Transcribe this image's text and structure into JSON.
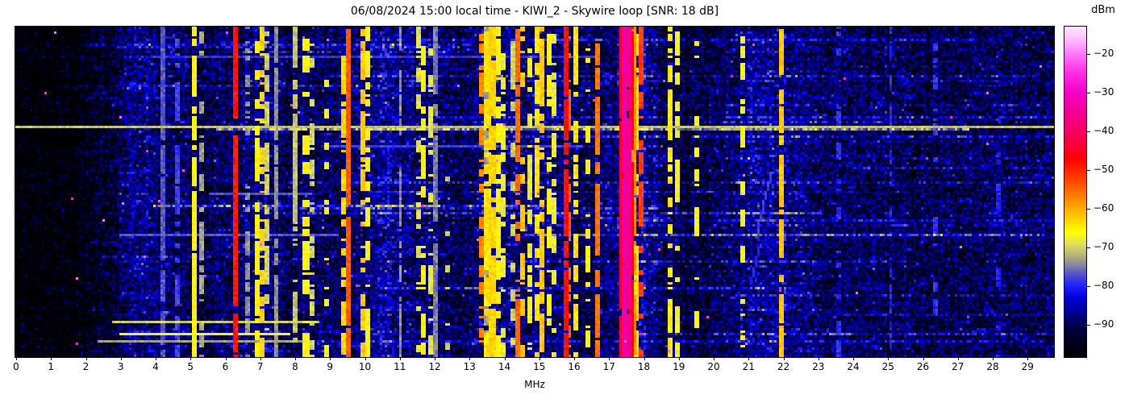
{
  "figure": {
    "title": "06/08/2024 15:00 local time - KIWI_2 - Skywire loop [SNR: 18 dB]",
    "xlabel": "MHz"
  },
  "colorbar": {
    "label": "dBm",
    "vmin": -98.3,
    "vmax": -12.9,
    "ticks": [
      {
        "v": -20,
        "label": "−20"
      },
      {
        "v": -30,
        "label": "−30"
      },
      {
        "v": -40,
        "label": "−40"
      },
      {
        "v": -50,
        "label": "−50"
      },
      {
        "v": -60,
        "label": "−60"
      },
      {
        "v": -70,
        "label": "−70"
      },
      {
        "v": -80,
        "label": "−80"
      },
      {
        "v": -90,
        "label": "−90"
      }
    ],
    "stops": [
      [
        -98.3,
        "#000000"
      ],
      [
        -94,
        "#00001e"
      ],
      [
        -90,
        "#00004b"
      ],
      [
        -87,
        "#000091"
      ],
      [
        -83,
        "#0000d7"
      ],
      [
        -80,
        "#1e1eff"
      ],
      [
        -77,
        "#5050cd"
      ],
      [
        -74.5,
        "#8787a0"
      ],
      [
        -72,
        "#b4b478"
      ],
      [
        -69,
        "#e1e15a"
      ],
      [
        -66,
        "#ffff00"
      ],
      [
        -62,
        "#ffc800"
      ],
      [
        -57,
        "#ff8200"
      ],
      [
        -52,
        "#ff3c00"
      ],
      [
        -47,
        "#ff0000"
      ],
      [
        -44,
        "#fa0032"
      ],
      [
        -40,
        "#f50064"
      ],
      [
        -35,
        "#f20096"
      ],
      [
        -30,
        "#f600c8"
      ],
      [
        -25,
        "#ff2ae1"
      ],
      [
        -20,
        "#ff78f8"
      ],
      [
        -16,
        "#ffc0ff"
      ],
      [
        -12.9,
        "#fce6ff"
      ]
    ]
  },
  "chart_data": {
    "type": "heatmap",
    "subtype": "hf-spectrum-waterfall",
    "title": "06/08/2024 15:00 local time - KIWI_2 - Skywire loop [SNR: 18 dB]",
    "xlabel": "MHz",
    "ylabel": "",
    "x_ticks": [
      0,
      1,
      2,
      3,
      4,
      5,
      6,
      7,
      8,
      9,
      10,
      11,
      12,
      13,
      14,
      15,
      16,
      17,
      18,
      19,
      20,
      21,
      22,
      23,
      24,
      25,
      26,
      27,
      28,
      29
    ],
    "x_range": [
      0,
      29.78
    ],
    "value_unit": "dBm",
    "value_range": [
      -98,
      -13
    ],
    "legend": "none",
    "grid": false,
    "noise_floor_points": [
      [
        0,
        -99
      ],
      [
        1.6,
        -98
      ],
      [
        2.2,
        -96
      ],
      [
        2.8,
        -92
      ],
      [
        3.3,
        -88
      ],
      [
        3.7,
        -86
      ],
      [
        4.1,
        -88
      ],
      [
        4.6,
        -90
      ],
      [
        5.4,
        -91
      ],
      [
        6.3,
        -89
      ],
      [
        7.1,
        -88
      ],
      [
        7.8,
        -90
      ],
      [
        8.6,
        -90
      ],
      [
        9.3,
        -89
      ],
      [
        10.0,
        -88
      ],
      [
        10.7,
        -86
      ],
      [
        11.3,
        -88
      ],
      [
        12.0,
        -88
      ],
      [
        12.7,
        -92
      ],
      [
        13.3,
        -88
      ],
      [
        13.8,
        -87
      ],
      [
        14.5,
        -89
      ],
      [
        15.1,
        -88
      ],
      [
        15.7,
        -89
      ],
      [
        16.3,
        -91
      ],
      [
        17.0,
        -90
      ],
      [
        17.5,
        -85
      ],
      [
        18.1,
        -86
      ],
      [
        18.6,
        -90
      ],
      [
        19.3,
        -92
      ],
      [
        20.2,
        -90
      ],
      [
        21.0,
        -87
      ],
      [
        21.6,
        -86
      ],
      [
        22.1,
        -87
      ],
      [
        22.6,
        -89
      ],
      [
        23.5,
        -90
      ],
      [
        25.0,
        -90
      ],
      [
        26.5,
        -91
      ],
      [
        28.0,
        -90
      ],
      [
        29.78,
        -90
      ]
    ],
    "signals_format": [
      "freq_mhz",
      "width_mhz",
      "level_dbm",
      "duty"
    ],
    "signals": [
      [
        4.25,
        0.07,
        -77,
        0.85
      ],
      [
        4.62,
        0.07,
        -78,
        0.7
      ],
      [
        5.14,
        0.09,
        -66,
        0.8
      ],
      [
        5.36,
        0.07,
        -73,
        0.6
      ],
      [
        6.28,
        0.07,
        -49,
        0.95
      ],
      [
        6.62,
        0.07,
        -74,
        0.5
      ],
      [
        6.92,
        0.12,
        -66,
        0.45
      ],
      [
        7.08,
        0.1,
        -63,
        0.55
      ],
      [
        7.22,
        0.07,
        -70,
        0.6
      ],
      [
        7.46,
        0.06,
        -74,
        0.8
      ],
      [
        8.0,
        0.07,
        -71,
        0.5
      ],
      [
        8.34,
        0.1,
        -66,
        0.55
      ],
      [
        8.52,
        0.07,
        -70,
        0.45
      ],
      [
        8.95,
        0.07,
        -67,
        0.4
      ],
      [
        9.4,
        0.07,
        -63,
        0.6
      ],
      [
        9.57,
        0.08,
        -54,
        0.92
      ],
      [
        9.95,
        0.07,
        -62,
        0.65
      ],
      [
        10.12,
        0.06,
        -67,
        0.5
      ],
      [
        11.05,
        0.06,
        -74,
        0.8
      ],
      [
        11.55,
        0.06,
        -69,
        0.4
      ],
      [
        11.72,
        0.08,
        -66,
        0.5
      ],
      [
        11.9,
        0.06,
        -68,
        0.45
      ],
      [
        12.05,
        0.06,
        -75,
        0.85
      ],
      [
        12.4,
        0.06,
        -70,
        0.3
      ],
      [
        13.38,
        0.1,
        -57,
        0.55
      ],
      [
        13.48,
        0.07,
        -73,
        0.8
      ],
      [
        13.55,
        0.1,
        -64,
        0.75
      ],
      [
        13.7,
        0.12,
        -63,
        0.85
      ],
      [
        13.87,
        0.09,
        -66,
        0.65
      ],
      [
        14.02,
        0.07,
        -68,
        0.55
      ],
      [
        14.27,
        0.06,
        -70,
        0.45
      ],
      [
        14.42,
        0.08,
        -55,
        0.75
      ],
      [
        14.55,
        0.06,
        -62,
        0.4
      ],
      [
        14.75,
        0.06,
        -68,
        0.4
      ],
      [
        14.97,
        0.08,
        -64,
        0.65
      ],
      [
        15.12,
        0.08,
        -62,
        0.55
      ],
      [
        15.28,
        0.07,
        -66,
        0.45
      ],
      [
        15.47,
        0.06,
        -68,
        0.45
      ],
      [
        15.82,
        0.06,
        -48,
        0.8
      ],
      [
        15.9,
        0.05,
        -55,
        0.5
      ],
      [
        16.06,
        0.07,
        -64,
        0.55
      ],
      [
        16.42,
        0.06,
        -66,
        0.35
      ],
      [
        16.67,
        0.06,
        -56,
        0.85
      ],
      [
        17.36,
        0.08,
        -44,
        0.95
      ],
      [
        17.47,
        0.09,
        -34,
        0.97
      ],
      [
        17.56,
        0.08,
        -36,
        0.95
      ],
      [
        17.63,
        0.07,
        -46,
        0.9
      ],
      [
        17.7,
        0.08,
        -58,
        0.85
      ],
      [
        17.78,
        0.06,
        -64,
        0.7
      ],
      [
        17.92,
        0.06,
        -52,
        0.5
      ],
      [
        18.75,
        0.07,
        -65,
        0.55
      ],
      [
        19.0,
        0.06,
        -67,
        0.45
      ],
      [
        19.52,
        0.06,
        -66,
        0.35
      ],
      [
        20.86,
        0.07,
        -67,
        0.5
      ],
      [
        21.96,
        0.08,
        -62,
        0.85
      ],
      [
        23.6,
        0.05,
        -79,
        0.3
      ],
      [
        25.1,
        0.05,
        -80,
        0.3
      ],
      [
        26.4,
        0.05,
        -79,
        0.25
      ],
      [
        28.2,
        0.05,
        -80,
        0.25
      ]
    ],
    "broadband_lines_format": [
      "time_frac",
      "f0_mhz",
      "f1_mhz",
      "level_dbm"
    ],
    "broadband_lines": [
      [
        0.302,
        0.0,
        29.78,
        -71
      ],
      [
        0.085,
        4.0,
        16.5,
        -79
      ],
      [
        0.36,
        9.0,
        16.2,
        -78
      ],
      [
        0.505,
        5.6,
        8.4,
        -77
      ],
      [
        0.635,
        3.0,
        9.2,
        -77
      ],
      [
        0.9,
        2.8,
        8.6,
        -70
      ],
      [
        0.935,
        3.0,
        7.8,
        -67
      ],
      [
        0.957,
        2.4,
        8.3,
        -73
      ]
    ],
    "diagonal_streaks": [
      {
        "f0": 21.62,
        "t0": 0.44,
        "f1": 21.2,
        "t1": 0.64,
        "level": -78
      },
      {
        "f0": 21.3,
        "t0": 0.66,
        "f1": 21.05,
        "t1": 0.78,
        "level": -80
      }
    ],
    "render": {
      "cols": 430,
      "rows": 137,
      "seed": 7,
      "noise_spread_db": 13
    }
  }
}
